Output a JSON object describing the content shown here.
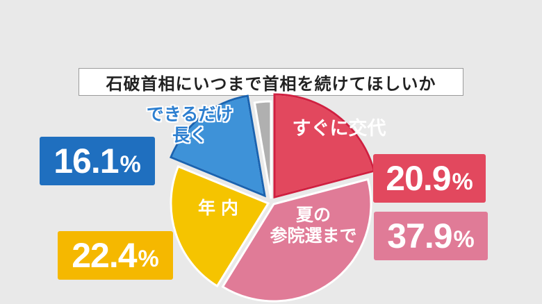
{
  "chart_data": {
    "type": "pie",
    "title": "石破首相にいつまで首相を続けてほしいか",
    "slices": [
      {
        "label": "すぐに交代",
        "value": 20.9,
        "display": "20.9",
        "color": "#e2485e"
      },
      {
        "label": "夏の参院選まで",
        "value": 37.9,
        "display": "37.9",
        "color": "#e07b97"
      },
      {
        "label": "年内",
        "value": 22.4,
        "display": "22.4",
        "color": "#f5c400"
      },
      {
        "label": "できるだけ長く",
        "value": 16.1,
        "display": "16.1",
        "color": "#3e92d8"
      },
      {
        "label": "",
        "value": 2.7,
        "color": "#b0b0b0"
      }
    ]
  },
  "labels": {
    "red": "すぐに交代",
    "pink_line1": "夏の",
    "pink_line2": "参院選まで",
    "yellow": "年内",
    "blue_line1": "できるだけ",
    "blue_line2": "長く"
  },
  "percent_sign": "%",
  "box_colors": {
    "red": "#e2485e",
    "pink": "#e07b97",
    "yellow": "#f5b800",
    "blue": "#1f6fbf"
  }
}
